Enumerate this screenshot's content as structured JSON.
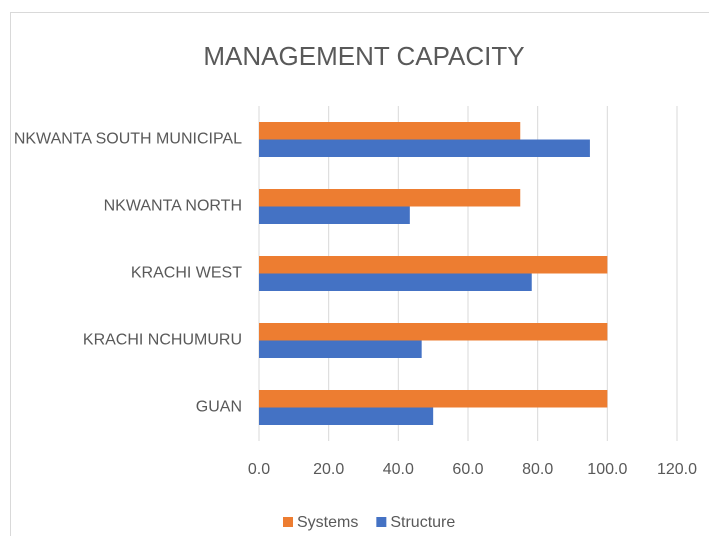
{
  "chart_data": {
    "type": "bar",
    "orientation": "horizontal",
    "title": "MANAGEMENT CAPACITY",
    "categories": [
      "NKWANTA SOUTH MUNICIPAL",
      "NKWANTA NORTH",
      "KRACHI WEST",
      "KRACHI NCHUMURU",
      "GUAN"
    ],
    "series": [
      {
        "name": "Systems",
        "color": "#ed7d31",
        "values": [
          75,
          75,
          100,
          100,
          100
        ]
      },
      {
        "name": "Structure",
        "color": "#4472c4",
        "values": [
          95,
          43.3,
          78.3,
          46.7,
          50
        ]
      }
    ],
    "xlim": [
      0,
      120
    ],
    "xticks": [
      {
        "value": 0,
        "label": "0.0"
      },
      {
        "value": 20,
        "label": "20.0"
      },
      {
        "value": 40,
        "label": "40.0"
      },
      {
        "value": 60,
        "label": "60.0"
      },
      {
        "value": 80,
        "label": "80.0"
      },
      {
        "value": 100,
        "label": "100.0"
      },
      {
        "value": 120,
        "label": "120.0"
      }
    ],
    "grid": true,
    "legend": "bottom"
  }
}
